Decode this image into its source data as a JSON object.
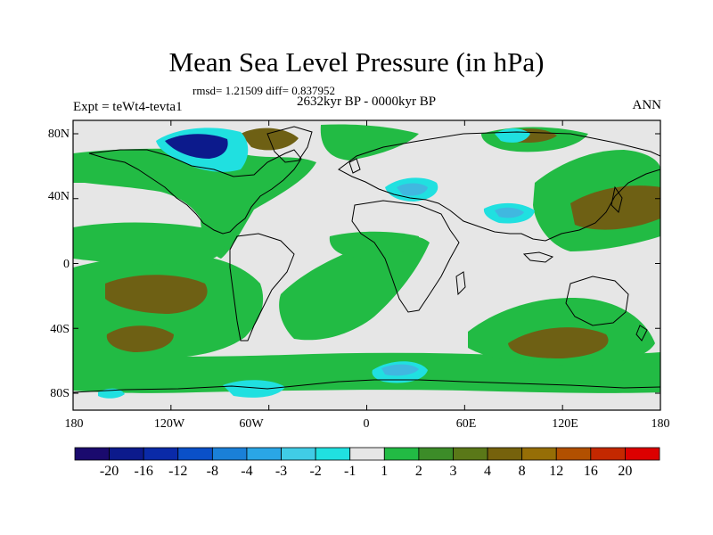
{
  "title": "Mean Sea Level Pressure (in hPa)",
  "stats_text": "rmsd= 1.21509 diff= 0.837952",
  "experiment_text": "Expt = teWt4-tevta1",
  "period_text": "2632kyr BP - 0000kyr BP",
  "season_text": "ANN",
  "lat_labels": [
    "80N",
    "40N",
    "0",
    "40S",
    "80S"
  ],
  "lon_labels": [
    "180",
    "120W",
    "60W",
    "0",
    "60E",
    "120E",
    "180"
  ],
  "colorbar_labels": [
    "-20",
    "-16",
    "-12",
    "-8",
    "-4",
    "-3",
    "-2",
    "-1",
    "1",
    "2",
    "3",
    "4",
    "8",
    "12",
    "16",
    "20"
  ],
  "colorbar_colors": [
    "#1a0a6e",
    "#0c1a8c",
    "#0a2aa8",
    "#0a50c8",
    "#1a80d8",
    "#2aa6e6",
    "#40cce6",
    "#20e0e0",
    "#e6e6e6",
    "#22bb44",
    "#3c8c28",
    "#5a7818",
    "#76620c",
    "#966e06",
    "#b25000",
    "#c42800",
    "#dc0000"
  ],
  "colors": {
    "background_zero": "#e6e6e6",
    "positive_light": "#22bb44",
    "positive_mid": "#3c8c28",
    "positive_strong": "#6e6014",
    "negative_light": "#20e0e0",
    "negative_mid": "#40b8e0",
    "negative_strong": "#0c1a8c"
  }
}
